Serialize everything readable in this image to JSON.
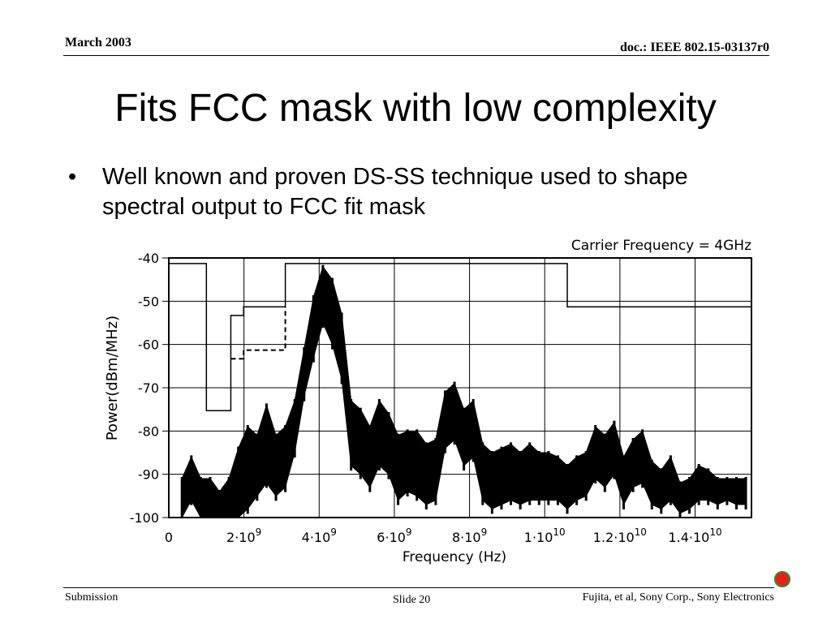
{
  "header": {
    "date": "March 2003",
    "doc_id": "doc.: IEEE 802.15-03137r0"
  },
  "slide": {
    "title": "Fits FCC mask with low complexity",
    "bullet_symbol": "•",
    "bullet_text": "Well known and proven DS-SS technique used to shape spectral output to FCC fit mask"
  },
  "footer": {
    "left": "Submission",
    "center": "Slide 20",
    "right": "Fujita, et al, Sony Corp., Sony Electronics"
  },
  "colors": {
    "background": "#ffffff",
    "text": "#000000",
    "corner_icon": "#e8201a"
  },
  "chart_data": {
    "type": "line",
    "title": "Carrier Frequency = 4GHz",
    "xlabel": "Frequency (Hz)",
    "ylabel": "Power(dBm/MHz)",
    "xlim": [
      0,
      15500000000
    ],
    "ylim": [
      -100,
      -40
    ],
    "grid": true,
    "x_ticks": [
      {
        "value": 0,
        "mant": "0",
        "exp": ""
      },
      {
        "value": 2000000000,
        "mant": "2·10",
        "exp": "9"
      },
      {
        "value": 4000000000,
        "mant": "4·10",
        "exp": "9"
      },
      {
        "value": 6000000000,
        "mant": "6·10",
        "exp": "9"
      },
      {
        "value": 8000000000,
        "mant": "8·10",
        "exp": "9"
      },
      {
        "value": 10000000000,
        "mant": "1·10",
        "exp": "10"
      },
      {
        "value": 12000000000,
        "mant": "1.2·10",
        "exp": "10"
      },
      {
        "value": 14000000000,
        "mant": "1.4·10",
        "exp": "10"
      }
    ],
    "y_ticks": [
      {
        "value": -40,
        "label": "-40"
      },
      {
        "value": -50,
        "label": "-50"
      },
      {
        "value": -60,
        "label": "-60"
      },
      {
        "value": -70,
        "label": "-70"
      },
      {
        "value": -80,
        "label": "-80"
      },
      {
        "value": -90,
        "label": "-90"
      },
      {
        "value": -100,
        "label": "-100"
      }
    ],
    "series": [
      {
        "style": "solid-thin",
        "x": [
          0,
          1000000000,
          1000000000,
          1650000000,
          1650000000,
          1990000000,
          1990000000,
          3100000000,
          3100000000,
          10600000000,
          10600000000,
          15500000000
        ],
        "y": [
          -41.3,
          -41.3,
          -75.3,
          -75.3,
          -53.3,
          -53.3,
          -51.3,
          -51.3,
          -41.3,
          -41.3,
          -51.3,
          -51.3
        ]
      },
      {
        "style": "dashed",
        "x": [
          1650000000,
          1990000000,
          1990000000,
          3100000000,
          3100000000
        ],
        "y": [
          -63.3,
          -63.3,
          -61.3,
          -61.3,
          -51.3
        ]
      },
      {
        "style": "envelope",
        "x": [
          350000000.0,
          600000000.0,
          850000000.0,
          1100000000.0,
          1350000000.0,
          1600000000.0,
          1850000000.0,
          2100000000.0,
          2350000000.0,
          2600000000.0,
          2850000000.0,
          3100000000.0,
          3350000000.0,
          3600000000.0,
          3850000000.0,
          4100000000.0,
          4350000000.0,
          4600000000.0,
          4850000000.0,
          5100000000.0,
          5350000000.0,
          5600000000.0,
          5850000000.0,
          6100000000.0,
          6350000000.0,
          6600000000.0,
          6850000000.0,
          7100000000.0,
          7350000000.0,
          7600000000.0,
          7850000000.0,
          8100000000.0,
          8350000000.0,
          8600000000.0,
          8850000000.0,
          9100000000.0,
          9350000000.0,
          9600000000.0,
          9850000000.0,
          10100000000.0,
          10350000000.0,
          10600000000.0,
          10850000000.0,
          11100000000.0,
          11350000000.0,
          11600000000.0,
          11850000000.0,
          12100000000.0,
          12350000000.0,
          12600000000.0,
          12850000000.0,
          13100000000.0,
          13350000000.0,
          13600000000.0,
          13850000000.0,
          14100000000.0,
          14350000000.0,
          14600000000.0,
          14850000000.0,
          15100000000.0,
          15350000000.0
        ],
        "y_max": [
          -91,
          -86,
          -91,
          -91,
          -94,
          -91,
          -84,
          -79,
          -81,
          -74,
          -81,
          -79,
          -73,
          -61,
          -49,
          -42,
          -45,
          -53,
          -73,
          -75,
          -79,
          -73,
          -76,
          -81,
          -80,
          -80,
          -83,
          -82,
          -71,
          -69,
          -75,
          -73,
          -83,
          -85,
          -84,
          -83,
          -85,
          -83,
          -85,
          -85,
          -86,
          -88,
          -86,
          -85,
          -79,
          -81,
          -78,
          -86,
          -82,
          -80,
          -87,
          -89,
          -86,
          -92,
          -91,
          -88,
          -89,
          -91,
          -91,
          -91,
          -91
        ],
        "y_min": [
          -100,
          -96,
          -100,
          -100,
          -100,
          -100,
          -100,
          -98,
          -95,
          -92,
          -95,
          -93,
          -85,
          -72,
          -63,
          -55,
          -60,
          -68,
          -88,
          -90,
          -93,
          -88,
          -90,
          -96,
          -94,
          -95,
          -97,
          -96,
          -84,
          -82,
          -88,
          -86,
          -96,
          -98,
          -97,
          -96,
          -97,
          -96,
          -96,
          -96,
          -96,
          -98,
          -96,
          -95,
          -91,
          -93,
          -90,
          -97,
          -93,
          -92,
          -97,
          -98,
          -96,
          -99,
          -98,
          -96,
          -96,
          -97,
          -96,
          -97,
          -97
        ]
      }
    ]
  }
}
